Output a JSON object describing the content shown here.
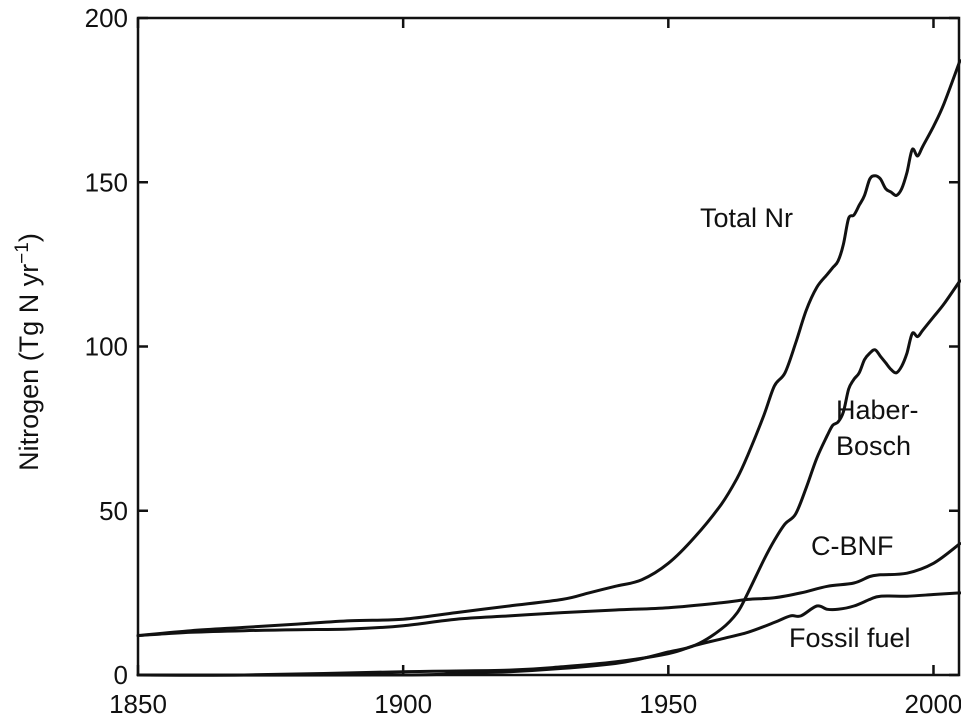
{
  "chart_data": {
    "type": "line",
    "ylabel": "Nitrogen (Tg N yr",
    "ylabel_superscript": "−1",
    "ylabel_close": ")",
    "xlim": [
      1850,
      2005
    ],
    "ylim": [
      0,
      200
    ],
    "xticks": [
      1850,
      1900,
      1950,
      2000
    ],
    "yticks": [
      0,
      50,
      100,
      150,
      200
    ],
    "grid": false,
    "legend": "none",
    "color": "#111111",
    "series": [
      {
        "name": "Total Nr",
        "label_lines": [
          "Total Nr"
        ],
        "x": [
          1850,
          1860,
          1870,
          1880,
          1890,
          1900,
          1910,
          1920,
          1930,
          1935,
          1940,
          1945,
          1950,
          1955,
          1960,
          1963,
          1965,
          1968,
          1970,
          1972,
          1974,
          1976,
          1978,
          1980,
          1981,
          1982,
          1983,
          1984,
          1985,
          1986,
          1987,
          1988,
          1989,
          1990,
          1991,
          1992,
          1993,
          1994,
          1995,
          1996,
          1997,
          1998,
          2000,
          2002,
          2005
        ],
        "y": [
          12,
          13.5,
          14.5,
          15.5,
          16.5,
          17,
          19,
          21,
          23,
          25,
          27,
          29,
          34,
          42,
          52,
          60,
          67,
          79,
          88,
          92,
          101,
          111,
          118,
          122,
          124,
          126,
          131,
          139,
          140,
          143,
          146,
          151,
          152,
          151,
          148,
          147,
          146,
          148,
          153,
          160,
          158,
          161,
          167,
          174,
          187
        ]
      },
      {
        "name": "Haber-Bosch",
        "label_lines": [
          "Haber-",
          "Bosch"
        ],
        "x": [
          1850,
          1900,
          1910,
          1920,
          1930,
          1940,
          1945,
          1950,
          1955,
          1960,
          1963,
          1965,
          1968,
          1970,
          1972,
          1974,
          1976,
          1978,
          1980,
          1981,
          1982,
          1983,
          1984,
          1985,
          1986,
          1987,
          1988,
          1989,
          1990,
          1991,
          1992,
          1993,
          1994,
          1995,
          1996,
          1997,
          1998,
          2000,
          2002,
          2005
        ],
        "y": [
          0,
          0,
          0.5,
          1,
          2,
          3.5,
          5,
          7,
          9,
          14,
          19,
          25,
          35,
          41,
          46,
          49,
          57,
          66,
          73,
          76,
          77,
          80,
          87,
          90,
          92,
          96,
          98,
          99,
          97,
          95,
          93,
          92,
          94,
          98,
          104,
          103,
          105,
          109,
          113,
          120
        ]
      },
      {
        "name": "C-BNF",
        "label_lines": [
          "C-BNF"
        ],
        "x": [
          1850,
          1860,
          1870,
          1880,
          1890,
          1900,
          1910,
          1920,
          1930,
          1940,
          1950,
          1960,
          1965,
          1970,
          1975,
          1980,
          1985,
          1988,
          1990,
          1995,
          2000,
          2005
        ],
        "y": [
          12,
          13,
          13.5,
          13.8,
          14,
          15,
          17,
          18,
          19,
          19.8,
          20.5,
          22,
          23,
          23.5,
          25,
          27,
          28,
          30,
          30.5,
          31,
          34,
          40
        ]
      },
      {
        "name": "Fossil fuel",
        "label_lines": [
          "Fossil fuel"
        ],
        "x": [
          1850,
          1870,
          1900,
          1920,
          1930,
          1940,
          1950,
          1955,
          1960,
          1965,
          1970,
          1973,
          1975,
          1978,
          1980,
          1982,
          1985,
          1988,
          1990,
          1995,
          2000,
          2005
        ],
        "y": [
          0,
          0,
          1,
          1.5,
          2.5,
          4,
          6.5,
          9,
          11,
          13,
          16,
          18,
          18,
          21,
          20,
          20,
          21,
          23,
          24,
          24,
          24.5,
          25
        ]
      }
    ]
  }
}
